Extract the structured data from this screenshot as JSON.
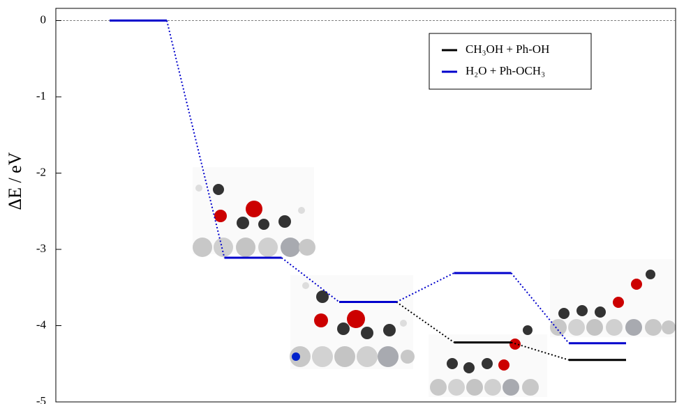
{
  "chart_data": {
    "type": "energy-levels",
    "y_label": "ΔE / eV",
    "categories": [
      null,
      null,
      null,
      null,
      null
    ],
    "series": [
      {
        "name": "CH₃OH + Ph-OH",
        "color": "#000000",
        "values": [
          null,
          null,
          -3.69,
          -4.22,
          -4.45
        ]
      },
      {
        "name": "H₂O + Ph-OCH₃",
        "color": "#0000cc",
        "values": [
          0,
          -3.11,
          -3.69,
          -3.31,
          -4.23
        ]
      }
    ],
    "ylim": [
      -5,
      0.16
    ],
    "yticks": [
      0,
      -1,
      -2,
      -3,
      -4,
      -5
    ],
    "hline": 0,
    "legend": "top-right"
  }
}
